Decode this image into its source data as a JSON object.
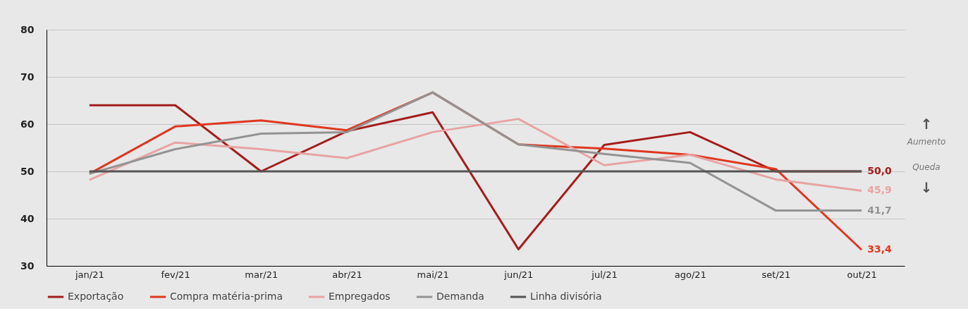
{
  "chart_data": {
    "type": "line",
    "categories": [
      "jan/21",
      "fev/21",
      "mar/21",
      "abr/21",
      "mai/21",
      "jun/21",
      "jul/21",
      "ago/21",
      "set/21",
      "out/21"
    ],
    "series": [
      {
        "name": "Exportação",
        "color": "#a51c1c",
        "values": [
          64,
          64,
          50,
          58.5,
          62.5,
          33.5,
          55.6,
          58.3,
          50,
          50.0
        ],
        "value_labels": [
          null,
          null,
          null,
          null,
          null,
          null,
          null,
          null,
          null,
          "50,0"
        ]
      },
      {
        "name": "Compra matéria-prima",
        "color": "#e0371f",
        "values": [
          49.5,
          59.5,
          60.8,
          58.7,
          66.7,
          55.7,
          54.8,
          53.5,
          50.5,
          33.4
        ],
        "value_labels": [
          null,
          null,
          null,
          null,
          null,
          null,
          null,
          null,
          null,
          "33,4"
        ]
      },
      {
        "name": "Empregados",
        "color": "#e8a3a3",
        "values": [
          48.2,
          56.1,
          54.7,
          52.8,
          58.3,
          61.1,
          51.3,
          53.5,
          48.3,
          45.9
        ],
        "value_labels": [
          null,
          null,
          null,
          null,
          null,
          null,
          null,
          null,
          null,
          "45,9"
        ]
      },
      {
        "name": "Demanda",
        "color": "#939393",
        "values": [
          49.5,
          54.7,
          58,
          58.3,
          66.7,
          55.7,
          53.7,
          51.8,
          41.7,
          41.7
        ],
        "value_labels": [
          null,
          null,
          null,
          null,
          null,
          null,
          null,
          null,
          null,
          "41,7"
        ]
      },
      {
        "name": "Linha divisória",
        "color": "#555555",
        "values": [
          50,
          50,
          50,
          50,
          50,
          50,
          50,
          50,
          50,
          50
        ]
      }
    ],
    "ylim": [
      30,
      80
    ],
    "yticks": [
      30,
      40,
      50,
      60,
      70,
      80
    ],
    "grid": "y",
    "legend": "bottom",
    "line_style": "solid",
    "marker": "none",
    "annotations": [
      "↑",
      "Aumento",
      "Queda",
      "↓"
    ]
  }
}
